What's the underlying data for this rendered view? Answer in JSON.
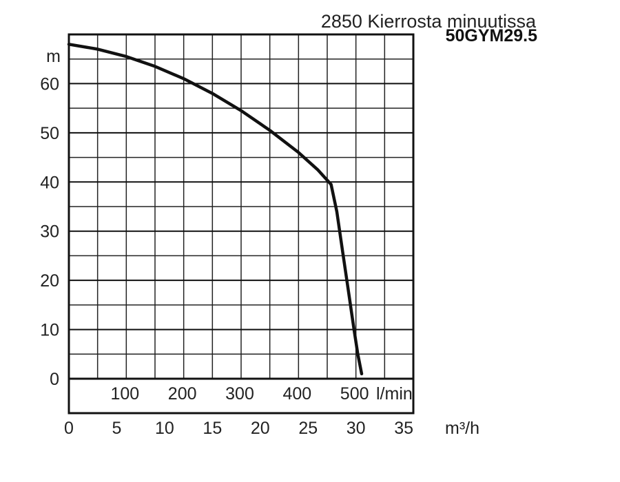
{
  "chart_data": {
    "type": "line",
    "title": "2850 Kierrosta minuutissa",
    "subtitle": "50GYM29.5",
    "ylabel": "m",
    "xlabel_lpm": "l/min",
    "xlabel_m3h": "m³/h",
    "ylim": [
      -7,
      70
    ],
    "yticks": [
      0,
      10,
      20,
      30,
      40,
      50,
      60
    ],
    "xlim_m3h": [
      0,
      36
    ],
    "xticks_m3h": [
      0,
      5,
      10,
      15,
      20,
      25,
      30,
      35
    ],
    "xticks_lpm": [
      100,
      200,
      300,
      400,
      500
    ],
    "grid": true,
    "series": [
      {
        "x_m3h": [
          0,
          3,
          6,
          9,
          12,
          15,
          18,
          21,
          24,
          26,
          27.4,
          28.0,
          28.6,
          29.2,
          29.8,
          30.2,
          30.6
        ],
        "y_m": [
          68,
          67,
          65.5,
          63.5,
          61,
          58,
          54.5,
          50.5,
          46,
          42.5,
          39.5,
          34,
          26,
          18,
          10,
          5,
          1
        ]
      }
    ]
  }
}
